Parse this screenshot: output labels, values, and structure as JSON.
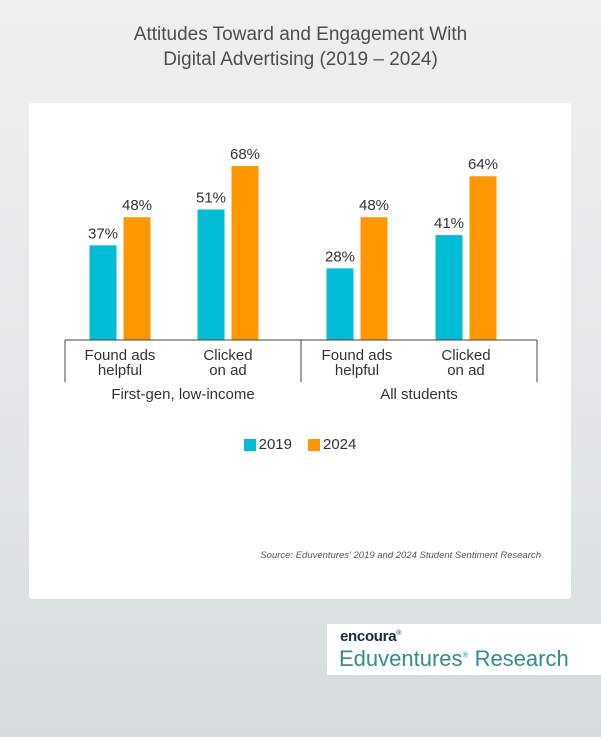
{
  "title": {
    "line1": "Attitudes Toward and Engagement With",
    "line2": "Digital Advertising (2019 – 2024)"
  },
  "colors": {
    "y2019": "#00bcd4",
    "y2024": "#ff9800"
  },
  "legend": {
    "label_2019": "2019",
    "label_2024": "2024"
  },
  "source": "Source: Eduventures' 2019 and 2024 Student Sentiment Research",
  "logo": {
    "top": "encoura",
    "bottom": "Eduventures",
    "bottom_suffix": "Research"
  },
  "chart_data": {
    "type": "bar",
    "groups": [
      "First-gen, low-income",
      "All students"
    ],
    "categories": [
      {
        "group": "First-gen, low-income",
        "label_lines": [
          "Found ads",
          "helpful"
        ]
      },
      {
        "group": "First-gen, low-income",
        "label_lines": [
          "Clicked",
          "on ad"
        ]
      },
      {
        "group": "All students",
        "label_lines": [
          "Found ads",
          "helpful"
        ]
      },
      {
        "group": "All students",
        "label_lines": [
          "Clicked",
          "on ad"
        ]
      }
    ],
    "series": [
      {
        "name": "2019",
        "values": [
          37,
          51,
          28,
          41
        ],
        "labels": [
          "37%",
          "51%",
          "28%",
          "41%"
        ]
      },
      {
        "name": "2024",
        "values": [
          48,
          68,
          48,
          64
        ],
        "labels": [
          "48%",
          "68%",
          "48%",
          "64%"
        ]
      }
    ],
    "unit": "%",
    "ylim": [
      0,
      68
    ],
    "grid": false,
    "legend_position": "bottom"
  }
}
